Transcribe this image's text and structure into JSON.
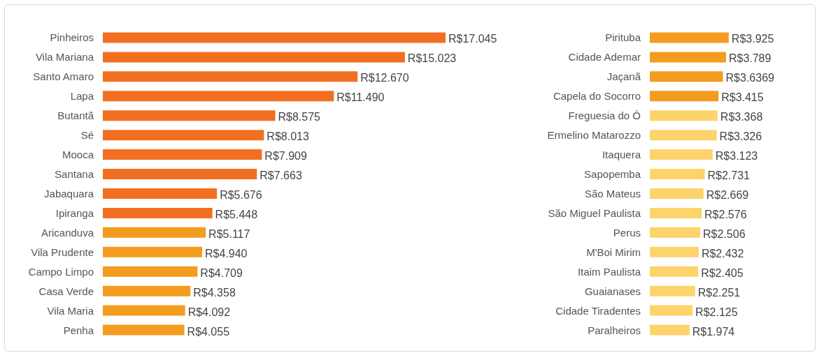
{
  "chart_data": [
    {
      "type": "bar",
      "orientation": "horizontal",
      "categories": [
        "Pinheiros",
        "Vila Mariana",
        "Santo Amaro",
        "Lapa",
        "Butantã",
        "Sé",
        "Mooca",
        "Santana",
        "Jabaquara",
        "Ipiranga",
        "Aricanduva",
        "Vila Prudente",
        "Campo Limpo",
        "Casa Verde",
        "Vila Maria",
        "Penha"
      ],
      "values": [
        17045,
        15023,
        12670,
        11490,
        8575,
        8013,
        7909,
        7663,
        5676,
        5448,
        5117,
        4940,
        4709,
        4358,
        4092,
        4055
      ],
      "colors": [
        "#f26f21",
        "#f26f21",
        "#f26f21",
        "#f26f21",
        "#f26f21",
        "#f26f21",
        "#f26f21",
        "#f26f21",
        "#f26f21",
        "#f26f21",
        "#f39c1f",
        "#f39c1f",
        "#f39c1f",
        "#f39c1f",
        "#f39c1f",
        "#f39c1f"
      ],
      "value_labels": [
        "R$17.045",
        "R$15.023",
        "R$12.670",
        "R$11.490",
        "R$8.575",
        "R$8.013",
        "R$7.909",
        "R$7.663",
        "R$5.676",
        "R$5.448",
        "R$5.117",
        "R$4.940",
        "R$4.709",
        "R$4.358",
        "R$4.092",
        "R$4.055"
      ]
    },
    {
      "type": "bar",
      "orientation": "horizontal",
      "categories": [
        "Pirituba",
        "Cidade Ademar",
        "Jaçanã",
        "Capela do Socorro",
        "Freguesia do Ó",
        "Ermelino Matarozzo",
        "Itaquera",
        "Sapopemba",
        "São Mateus",
        "São Miguel Paulista",
        "Perus",
        "M'Boi Mirim",
        "Itaim Paulista",
        "Guaianases",
        "Cidade Tiradentes",
        "Paralheiros"
      ],
      "values": [
        3925,
        3789,
        3636.9,
        3415,
        3368,
        3326,
        3123,
        2731,
        2669,
        2576,
        2506,
        2432,
        2405,
        2251,
        2125,
        1974
      ],
      "colors": [
        "#f39c1f",
        "#f39c1f",
        "#f39c1f",
        "#f39c1f",
        "#fdd36b",
        "#fdd36b",
        "#fdd36b",
        "#fdd36b",
        "#fdd36b",
        "#fdd36b",
        "#fdd36b",
        "#fdd36b",
        "#fdd36b",
        "#fdd36b",
        "#fdd36b",
        "#fdd36b"
      ],
      "value_labels": [
        "R$3.925",
        "R$3.789",
        "R$3.6369",
        "R$3.415",
        "R$3.368",
        "R$3.326",
        "R$3.123",
        "R$2.731",
        "R$2.669",
        "R$2.576",
        "R$2.506",
        "R$2.432",
        "R$2.405",
        "R$2.251",
        "R$2.125",
        "R$1.974"
      ]
    }
  ]
}
